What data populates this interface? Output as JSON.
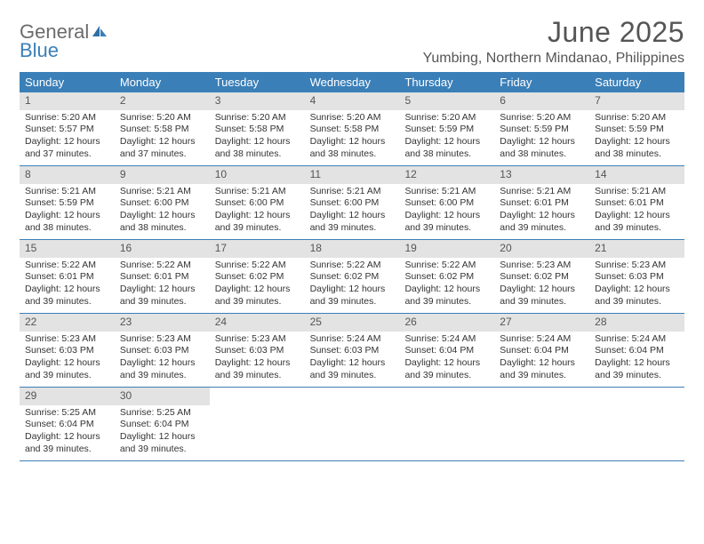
{
  "brand": {
    "general": "General",
    "blue": "Blue"
  },
  "title": "June 2025",
  "location": "Yumbing, Northern Mindanao, Philippines",
  "colors": {
    "header_bg": "#3a7fb8",
    "header_fg": "#ffffff",
    "daynum_bg": "#e3e3e3",
    "daynum_fg": "#555555",
    "border": "#3a7fb8",
    "page_bg": "#ffffff",
    "text": "#333333",
    "title_fg": "#555555"
  },
  "weekdays": [
    "Sunday",
    "Monday",
    "Tuesday",
    "Wednesday",
    "Thursday",
    "Friday",
    "Saturday"
  ],
  "labels": {
    "sunrise": "Sunrise:",
    "sunset": "Sunset:",
    "daylight": "Daylight:"
  },
  "days": [
    {
      "n": 1,
      "sunrise": "5:20 AM",
      "sunset": "5:57 PM",
      "daylight": "12 hours and 37 minutes."
    },
    {
      "n": 2,
      "sunrise": "5:20 AM",
      "sunset": "5:58 PM",
      "daylight": "12 hours and 37 minutes."
    },
    {
      "n": 3,
      "sunrise": "5:20 AM",
      "sunset": "5:58 PM",
      "daylight": "12 hours and 38 minutes."
    },
    {
      "n": 4,
      "sunrise": "5:20 AM",
      "sunset": "5:58 PM",
      "daylight": "12 hours and 38 minutes."
    },
    {
      "n": 5,
      "sunrise": "5:20 AM",
      "sunset": "5:59 PM",
      "daylight": "12 hours and 38 minutes."
    },
    {
      "n": 6,
      "sunrise": "5:20 AM",
      "sunset": "5:59 PM",
      "daylight": "12 hours and 38 minutes."
    },
    {
      "n": 7,
      "sunrise": "5:20 AM",
      "sunset": "5:59 PM",
      "daylight": "12 hours and 38 minutes."
    },
    {
      "n": 8,
      "sunrise": "5:21 AM",
      "sunset": "5:59 PM",
      "daylight": "12 hours and 38 minutes."
    },
    {
      "n": 9,
      "sunrise": "5:21 AM",
      "sunset": "6:00 PM",
      "daylight": "12 hours and 38 minutes."
    },
    {
      "n": 10,
      "sunrise": "5:21 AM",
      "sunset": "6:00 PM",
      "daylight": "12 hours and 39 minutes."
    },
    {
      "n": 11,
      "sunrise": "5:21 AM",
      "sunset": "6:00 PM",
      "daylight": "12 hours and 39 minutes."
    },
    {
      "n": 12,
      "sunrise": "5:21 AM",
      "sunset": "6:00 PM",
      "daylight": "12 hours and 39 minutes."
    },
    {
      "n": 13,
      "sunrise": "5:21 AM",
      "sunset": "6:01 PM",
      "daylight": "12 hours and 39 minutes."
    },
    {
      "n": 14,
      "sunrise": "5:21 AM",
      "sunset": "6:01 PM",
      "daylight": "12 hours and 39 minutes."
    },
    {
      "n": 15,
      "sunrise": "5:22 AM",
      "sunset": "6:01 PM",
      "daylight": "12 hours and 39 minutes."
    },
    {
      "n": 16,
      "sunrise": "5:22 AM",
      "sunset": "6:01 PM",
      "daylight": "12 hours and 39 minutes."
    },
    {
      "n": 17,
      "sunrise": "5:22 AM",
      "sunset": "6:02 PM",
      "daylight": "12 hours and 39 minutes."
    },
    {
      "n": 18,
      "sunrise": "5:22 AM",
      "sunset": "6:02 PM",
      "daylight": "12 hours and 39 minutes."
    },
    {
      "n": 19,
      "sunrise": "5:22 AM",
      "sunset": "6:02 PM",
      "daylight": "12 hours and 39 minutes."
    },
    {
      "n": 20,
      "sunrise": "5:23 AM",
      "sunset": "6:02 PM",
      "daylight": "12 hours and 39 minutes."
    },
    {
      "n": 21,
      "sunrise": "5:23 AM",
      "sunset": "6:03 PM",
      "daylight": "12 hours and 39 minutes."
    },
    {
      "n": 22,
      "sunrise": "5:23 AM",
      "sunset": "6:03 PM",
      "daylight": "12 hours and 39 minutes."
    },
    {
      "n": 23,
      "sunrise": "5:23 AM",
      "sunset": "6:03 PM",
      "daylight": "12 hours and 39 minutes."
    },
    {
      "n": 24,
      "sunrise": "5:23 AM",
      "sunset": "6:03 PM",
      "daylight": "12 hours and 39 minutes."
    },
    {
      "n": 25,
      "sunrise": "5:24 AM",
      "sunset": "6:03 PM",
      "daylight": "12 hours and 39 minutes."
    },
    {
      "n": 26,
      "sunrise": "5:24 AM",
      "sunset": "6:04 PM",
      "daylight": "12 hours and 39 minutes."
    },
    {
      "n": 27,
      "sunrise": "5:24 AM",
      "sunset": "6:04 PM",
      "daylight": "12 hours and 39 minutes."
    },
    {
      "n": 28,
      "sunrise": "5:24 AM",
      "sunset": "6:04 PM",
      "daylight": "12 hours and 39 minutes."
    },
    {
      "n": 29,
      "sunrise": "5:25 AM",
      "sunset": "6:04 PM",
      "daylight": "12 hours and 39 minutes."
    },
    {
      "n": 30,
      "sunrise": "5:25 AM",
      "sunset": "6:04 PM",
      "daylight": "12 hours and 39 minutes."
    }
  ],
  "grid": {
    "total_cells": 35,
    "leading_blanks": 0,
    "trailing_blanks": 5
  }
}
